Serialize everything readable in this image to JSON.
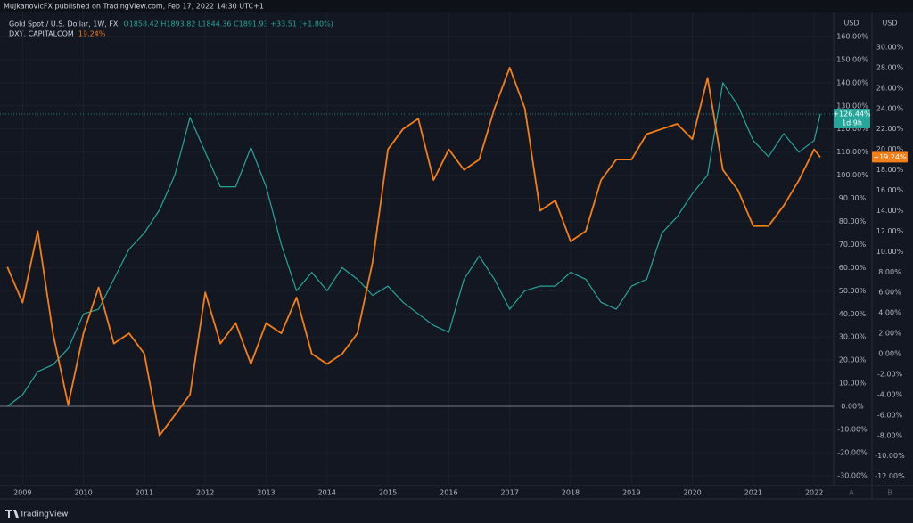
{
  "chart_data": {
    "type": "line",
    "title": "MujkanovicFX published on TradingView.com, Feb 17, 2022 14:30 UTC+1",
    "ohlc": "O1858.42 H1893.82 L1844.36 C1891.93 +33.51 (+1.80%)",
    "y_unit": "USD",
    "y2_unit": "USD",
    "y_axis_mark": "A",
    "y2_axis_mark": "B",
    "footer": "TradingView",
    "x": [
      2008.75,
      2009,
      2009.25,
      2009.5,
      2009.75,
      2010,
      2010.25,
      2010.5,
      2010.75,
      2011,
      2011.25,
      2011.5,
      2011.75,
      2012,
      2012.25,
      2012.5,
      2012.75,
      2013,
      2013.25,
      2013.5,
      2013.75,
      2014,
      2014.25,
      2014.5,
      2014.75,
      2015,
      2015.25,
      2015.5,
      2015.75,
      2016,
      2016.25,
      2016.5,
      2016.75,
      2017,
      2017.25,
      2017.5,
      2017.75,
      2018,
      2018.25,
      2018.5,
      2018.75,
      2019,
      2019.25,
      2019.5,
      2019.75,
      2020,
      2020.25,
      2020.5,
      2020.75,
      2021,
      2021.25,
      2021.5,
      2021.75,
      2022,
      2022.1
    ],
    "series": [
      {
        "name": "Gold Spot / U.S. Dollar, 1W, FX",
        "color": "#26a69a",
        "axis": "y",
        "values": [
          0,
          5,
          15,
          18,
          25,
          40,
          42,
          55,
          68,
          75,
          85,
          100,
          125,
          110,
          95,
          95,
          112,
          95,
          70,
          50,
          58,
          50,
          60,
          55,
          48,
          52,
          45,
          40,
          35,
          32,
          55,
          65,
          55,
          42,
          50,
          52,
          52,
          58,
          55,
          45,
          42,
          52,
          55,
          75,
          82,
          92,
          100,
          140,
          130,
          115,
          108,
          118,
          110,
          115,
          126.44
        ],
        "last_label": "+126.44%",
        "countdown": "1d 9h"
      },
      {
        "name": "DXY, CAPITALCOM",
        "color": "#f57f17",
        "axis": "y2",
        "values": [
          8.5,
          5,
          12,
          2,
          -5,
          2,
          6.5,
          1,
          2,
          0,
          -8,
          -6,
          -4,
          6,
          1,
          3,
          -1,
          3,
          2,
          5.5,
          0,
          -1,
          0,
          2,
          9,
          20,
          22,
          23,
          17,
          20,
          18,
          19,
          24,
          28,
          24,
          14,
          15,
          11,
          12,
          17,
          19,
          19,
          21.5,
          22,
          22.5,
          21,
          27,
          18,
          16,
          12.5,
          12.5,
          14.5,
          17,
          20,
          19.24
        ],
        "legend_value": "19.24%",
        "last_label": "+19.24%"
      }
    ],
    "xlim": [
      2008.63,
      2022.32
    ],
    "xticks": [
      2009,
      2010,
      2011,
      2012,
      2013,
      2014,
      2015,
      2016,
      2017,
      2018,
      2019,
      2020,
      2021,
      2022
    ],
    "ylim": [
      -34.3,
      170.4
    ],
    "yticks": [
      {
        "value": -30,
        "label": "-30.00%"
      },
      {
        "value": -20,
        "label": "-20.00%"
      },
      {
        "value": -10,
        "label": "-10.00%"
      },
      {
        "value": 0,
        "label": "0.00%"
      },
      {
        "value": 10,
        "label": "10.00%"
      },
      {
        "value": 20,
        "label": "20.00%"
      },
      {
        "value": 30,
        "label": "30.00%"
      },
      {
        "value": 40,
        "label": "40.00%"
      },
      {
        "value": 50,
        "label": "50.00%"
      },
      {
        "value": 60,
        "label": "60.00%"
      },
      {
        "value": 70,
        "label": "70.00%"
      },
      {
        "value": 80,
        "label": "80.00%"
      },
      {
        "value": 90,
        "label": "90.00%"
      },
      {
        "value": 100,
        "label": "100.00%"
      },
      {
        "value": 110,
        "label": "110.00%"
      },
      {
        "value": 120,
        "label": "120.00%"
      },
      {
        "value": 130,
        "label": "130.00%"
      },
      {
        "value": 140,
        "label": "140.00%"
      },
      {
        "value": 150,
        "label": "150.00%"
      },
      {
        "value": 160,
        "label": "160.00%"
      }
    ],
    "y2lim": [
      -12.9,
      33.4
    ],
    "y2ticks": [
      {
        "value": -12,
        "label": "-12.00%"
      },
      {
        "value": -10,
        "label": "-10.00%"
      },
      {
        "value": -8,
        "label": "-8.00%"
      },
      {
        "value": -6,
        "label": "-6.00%"
      },
      {
        "value": -4,
        "label": "-4.00%"
      },
      {
        "value": -2,
        "label": "-2.00%"
      },
      {
        "value": 0,
        "label": "0.00%"
      },
      {
        "value": 2,
        "label": "2.00%"
      },
      {
        "value": 4,
        "label": "4.00%"
      },
      {
        "value": 6,
        "label": "6.00%"
      },
      {
        "value": 8,
        "label": "8.00%"
      },
      {
        "value": 10,
        "label": "10.00%"
      },
      {
        "value": 12,
        "label": "12.00%"
      },
      {
        "value": 14,
        "label": "14.00%"
      },
      {
        "value": 16,
        "label": "16.00%"
      },
      {
        "value": 18,
        "label": "18.00%"
      },
      {
        "value": 20,
        "label": "20.00%"
      },
      {
        "value": 22,
        "label": "22.00%"
      },
      {
        "value": 24,
        "label": "24.00%"
      },
      {
        "value": 26,
        "label": "26.00%"
      },
      {
        "value": 28,
        "label": "28.00%"
      },
      {
        "value": 30,
        "label": "30.00%"
      }
    ],
    "grid": true
  }
}
